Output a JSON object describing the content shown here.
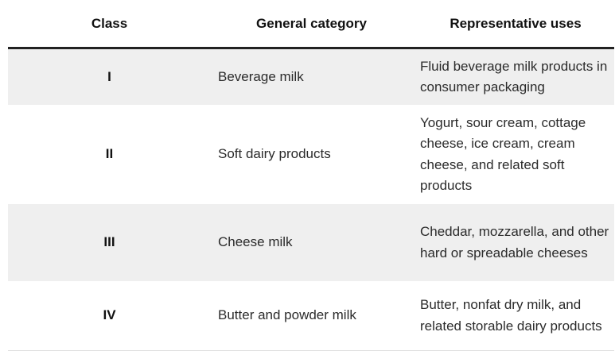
{
  "table": {
    "headers": [
      "Class",
      "General category",
      "Representative uses"
    ],
    "rows": [
      [
        "I",
        "Beverage milk",
        "Fluid beverage milk products in consumer packaging"
      ],
      [
        "II",
        "Soft dairy products",
        "Yogurt, sour cream, cottage cheese, ice cream, cream cheese, and related soft products"
      ],
      [
        "III",
        "Cheese milk",
        "Cheddar, mozzarella, and other hard or spreadable cheeses"
      ],
      [
        "IV",
        "Butter and powder milk",
        "Butter, nonfat dry milk, and related storable dairy products"
      ]
    ]
  }
}
